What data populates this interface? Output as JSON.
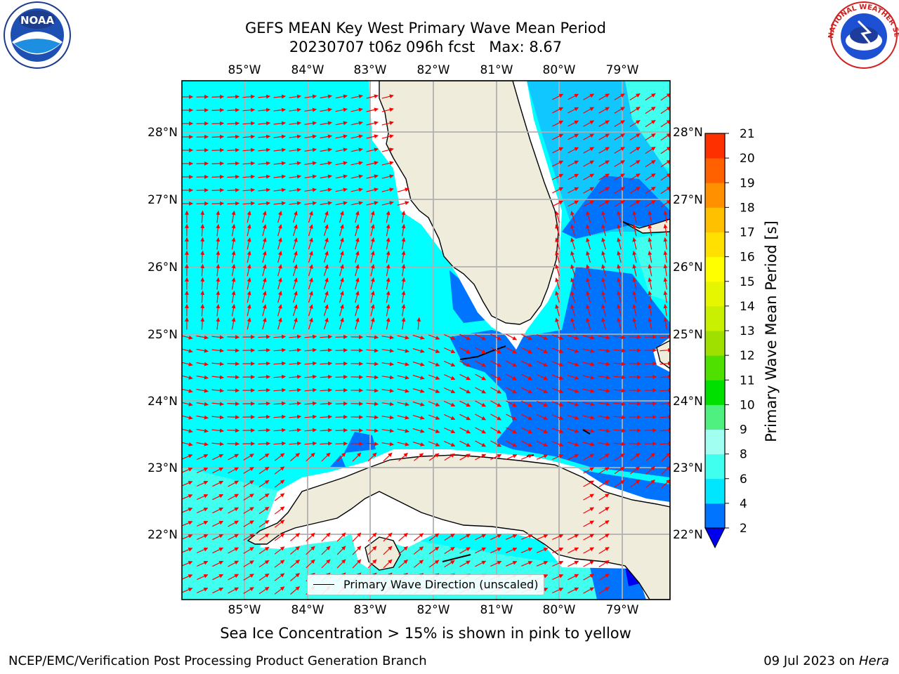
{
  "title": {
    "line1": "GEFS MEAN Key West Primary Wave Mean Period",
    "line2": "20230707 t06z 096h fcst   Max: 8.67"
  },
  "map": {
    "lon_labels": [
      "85°W",
      "84°W",
      "83°W",
      "82°W",
      "81°W",
      "80°W",
      "79°W"
    ],
    "lat_labels": [
      "28°N",
      "27°N",
      "26°N",
      "25°N",
      "24°N",
      "23°N",
      "22°N"
    ],
    "legend_label": "Primary Wave Direction (unscaled)",
    "land_color": "#efecdc",
    "arrow_color": "#ff0000"
  },
  "colorbar": {
    "label": "Primary Wave Mean Period [s]",
    "ticks": [
      "2",
      "4",
      "6",
      "8",
      "9",
      "10",
      "11",
      "12",
      "13",
      "14",
      "15",
      "16",
      "17",
      "18",
      "19",
      "20",
      "21"
    ],
    "colors": [
      "#0073ff",
      "#00e6ff",
      "#40ffee",
      "#a0fff0",
      "#50f080",
      "#00e000",
      "#50e000",
      "#a0e000",
      "#c8f000",
      "#e6f500",
      "#ffff00",
      "#ffe000",
      "#ffc000",
      "#ff9000",
      "#ff6000",
      "#ff3000",
      "#ff0000"
    ],
    "under_color": "#0000ee"
  },
  "ice_note": "Sea Ice Concentration > 15% is shown in pink to yellow",
  "footer": {
    "left": "NCEP/EMC/Verification Post Processing Product Generation Branch",
    "date": "09 Jul 2023 on",
    "machine": "Hera"
  },
  "logos": {
    "noaa_text": "NOAA",
    "nws_text": "NATIONAL WEATHER SERVICE"
  }
}
